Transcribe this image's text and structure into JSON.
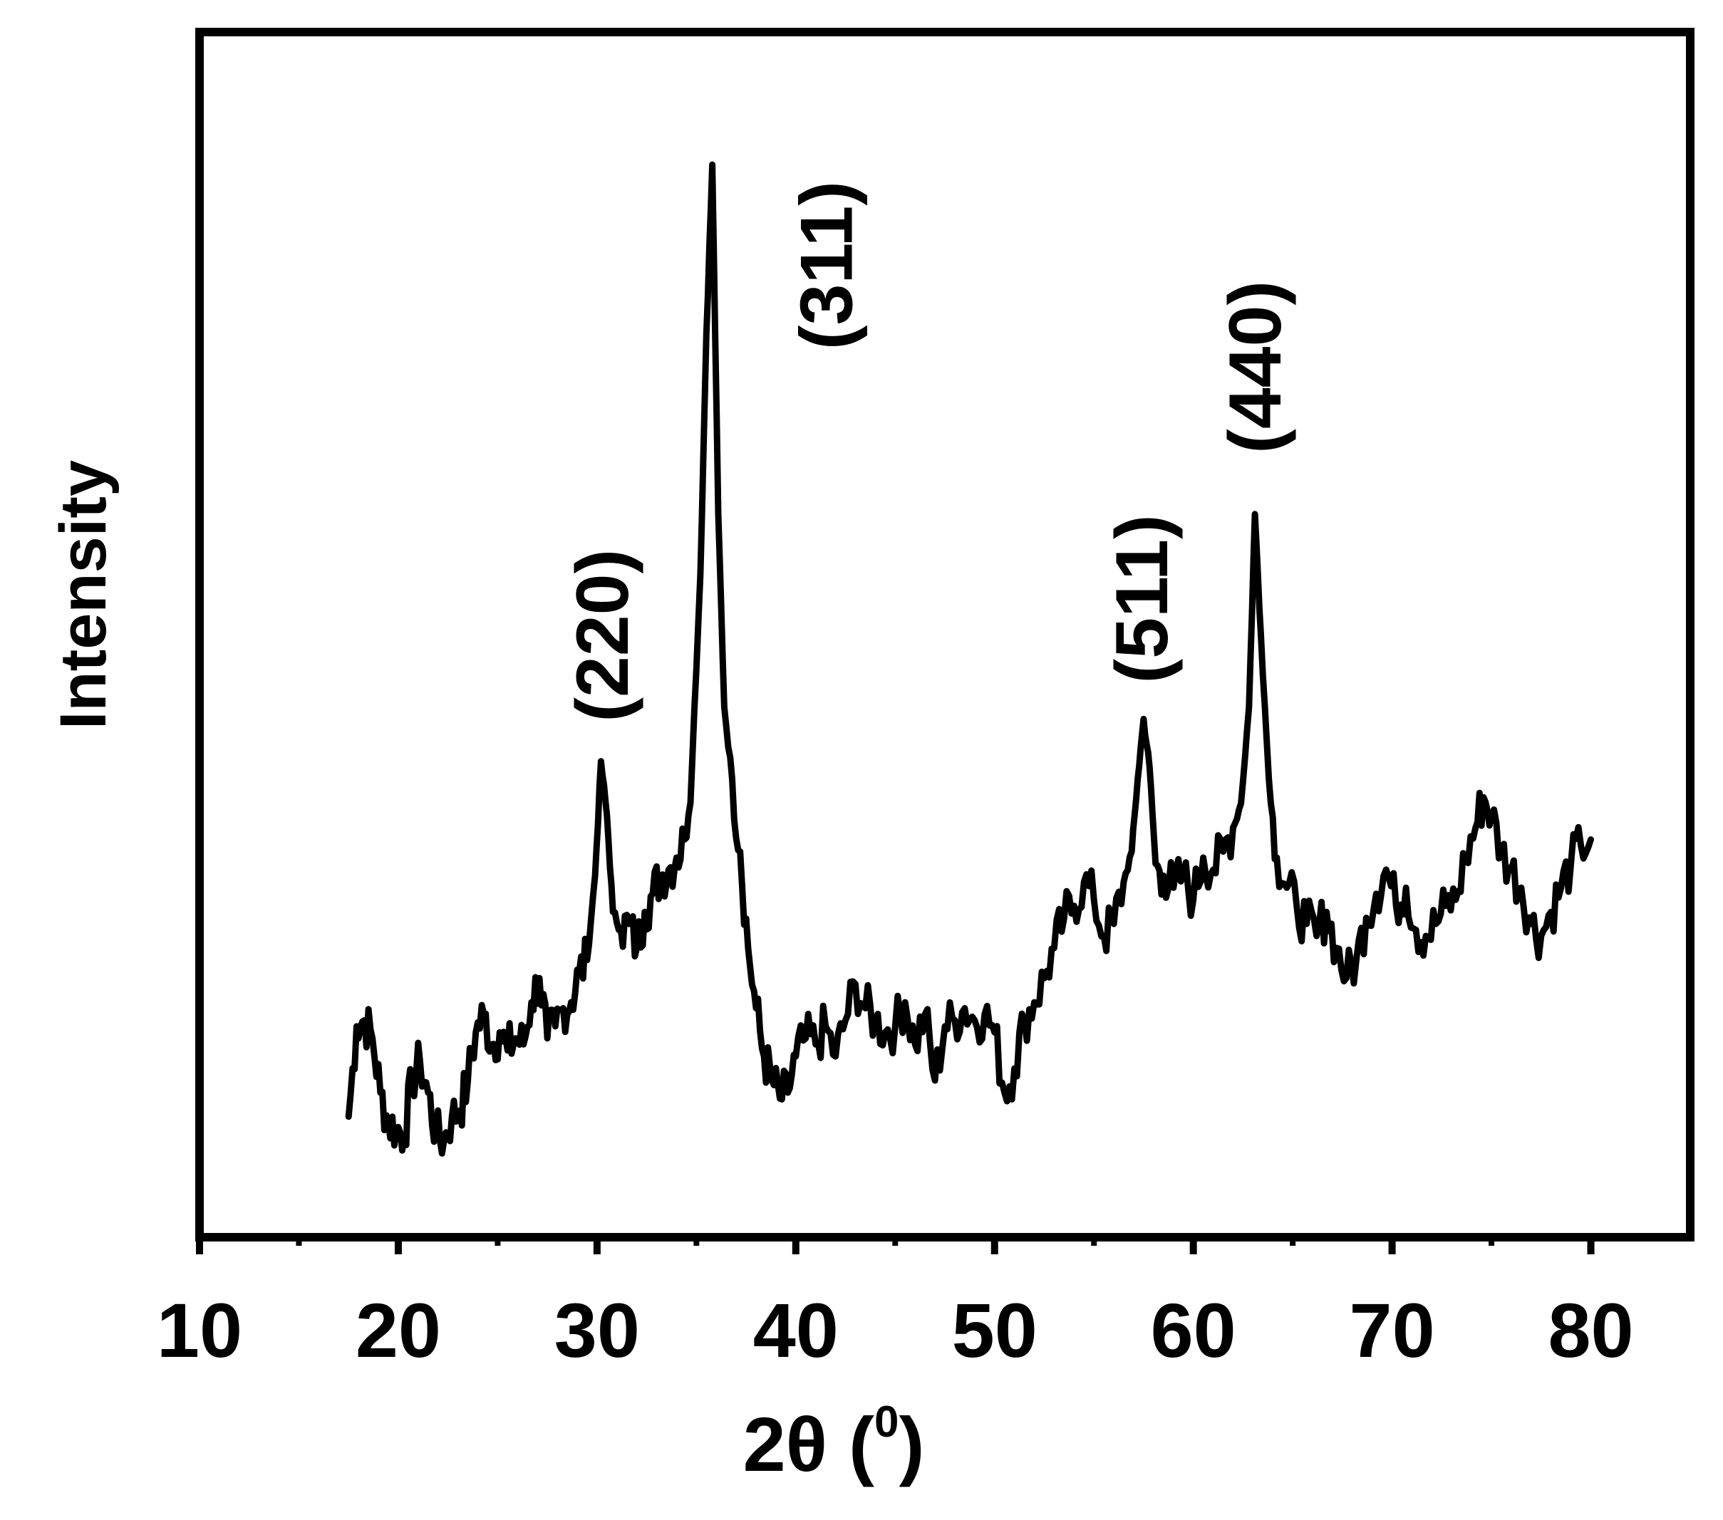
{
  "chart_data": {
    "type": "line",
    "title": "",
    "xlabel_main": "2θ (",
    "xlabel_sup": "0",
    "xlabel_end": ")",
    "ylabel": "Intensity",
    "xlim": [
      10,
      85
    ],
    "ylim": [
      0,
      100
    ],
    "x_ticks": [
      10,
      20,
      30,
      40,
      50,
      60,
      70,
      80
    ],
    "x_tick_labels": [
      "10",
      "20",
      "30",
      "40",
      "50",
      "60",
      "70",
      "80"
    ],
    "grid": false,
    "legend": "none",
    "line_color": "#000000",
    "peaks": [
      {
        "label": "(220)",
        "x": 30.4,
        "y": 39.5
      },
      {
        "label": "(311)",
        "x": 35.8,
        "y": 89.0
      },
      {
        "label": "(511)",
        "x": 57.4,
        "y": 43.0
      },
      {
        "label": "(440)",
        "x": 63.1,
        "y": 60.0
      }
    ],
    "series": [
      {
        "x": [
          17.5,
          17.9,
          18.3,
          18.7,
          19.1,
          19.5,
          19.9,
          20.3,
          20.7,
          21.1,
          21.5,
          21.9,
          22.3,
          22.7,
          23.1,
          23.5,
          23.9,
          24.3,
          24.7,
          25.1,
          25.5,
          25.9,
          26.3,
          26.7,
          27.1,
          27.5,
          27.9,
          28.3,
          28.7,
          29.1,
          29.5,
          29.9,
          30.2,
          30.5,
          30.8,
          31.2,
          31.6,
          32.0,
          32.4,
          32.8,
          33.2,
          33.6,
          34.0,
          34.4,
          34.8,
          35.2,
          35.5,
          35.8,
          36.1,
          36.4,
          36.8,
          37.2,
          37.6,
          38.0,
          38.4,
          38.8,
          39.2,
          39.6,
          40.0,
          40.5,
          41.0,
          41.5,
          42.0,
          42.5,
          43.0,
          43.5,
          44.0,
          44.5,
          45.0,
          45.5,
          46.0,
          46.5,
          47.0,
          47.5,
          48.0,
          48.5,
          49.0,
          49.5,
          50.0,
          50.5,
          51.0,
          51.5,
          52.0,
          52.5,
          53.0,
          53.5,
          54.0,
          54.5,
          55.0,
          55.5,
          56.0,
          56.5,
          56.9,
          57.2,
          57.5,
          57.8,
          58.1,
          58.5,
          59.0,
          59.5,
          60.0,
          60.5,
          61.0,
          61.5,
          62.0,
          62.4,
          62.8,
          63.1,
          63.4,
          63.8,
          64.2,
          64.7,
          65.2,
          65.7,
          66.2,
          66.7,
          67.2,
          67.7,
          68.2,
          68.7,
          69.2,
          69.7,
          70.2,
          70.7,
          71.2,
          71.7,
          72.2,
          72.7,
          73.2,
          73.7,
          74.2,
          74.6,
          75.0,
          75.5,
          76.0,
          76.5,
          77.0,
          77.5,
          78.0,
          78.5,
          79.0,
          79.5,
          80.0
        ],
        "y": [
          10.0,
          17.5,
          18.0,
          16.5,
          12.0,
          9.5,
          9.0,
          8.5,
          13.0,
          14.5,
          12.0,
          8.5,
          8.0,
          10.0,
          10.5,
          13.0,
          17.0,
          18.5,
          16.0,
          17.0,
          15.5,
          16.5,
          16.0,
          19.5,
          21.5,
          16.5,
          17.5,
          19.0,
          19.5,
          22.0,
          23.0,
          30.0,
          39.5,
          35.0,
          27.0,
          25.5,
          26.0,
          24.0,
          27.0,
          28.5,
          30.0,
          30.5,
          31.5,
          33.0,
          40.0,
          55.0,
          75.0,
          89.0,
          60.0,
          44.0,
          38.0,
          32.0,
          24.0,
          19.0,
          15.0,
          13.0,
          11.5,
          12.0,
          15.0,
          16.5,
          16.0,
          17.5,
          15.0,
          18.0,
          21.0,
          19.0,
          18.0,
          17.0,
          17.5,
          19.5,
          16.0,
          18.5,
          13.0,
          17.5,
          18.0,
          19.0,
          18.0,
          18.5,
          17.0,
          12.0,
          14.0,
          18.0,
          19.5,
          21.5,
          24.0,
          26.5,
          27.5,
          29.5,
          28.0,
          25.0,
          26.0,
          29.5,
          32.0,
          38.0,
          43.0,
          39.0,
          31.0,
          30.0,
          29.0,
          30.0,
          28.0,
          31.5,
          30.5,
          32.0,
          34.0,
          36.0,
          44.0,
          60.0,
          50.0,
          38.0,
          31.5,
          29.0,
          27.5,
          26.0,
          25.0,
          27.0,
          24.0,
          21.5,
          23.0,
          26.5,
          28.5,
          30.5,
          27.5,
          29.0,
          25.5,
          25.0,
          26.0,
          27.5,
          28.0,
          31.5,
          34.0,
          36.5,
          35.0,
          32.0,
          30.5,
          29.0,
          26.0,
          25.0,
          27.0,
          29.0,
          31.0,
          32.5,
          33.0
        ]
      }
    ]
  }
}
